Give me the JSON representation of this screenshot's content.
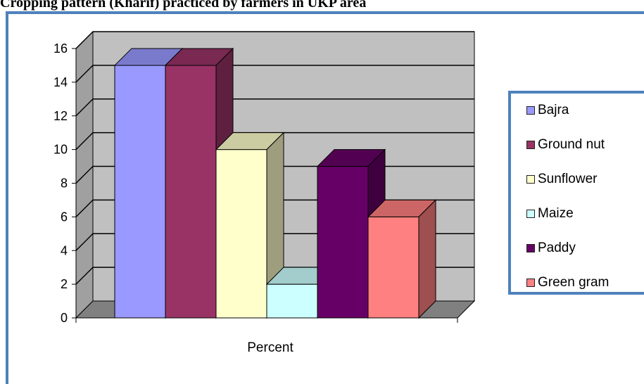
{
  "title": "Cropping pattern (Kharif) practiced by farmers in UKP area",
  "chart_data": {
    "type": "bar",
    "style": "3d-clustered-column",
    "categories": [
      "Percent"
    ],
    "series": [
      {
        "name": "Bajra",
        "values": [
          15
        ],
        "color": "#9999ff"
      },
      {
        "name": "Ground nut",
        "values": [
          15
        ],
        "color": "#993366"
      },
      {
        "name": "Sunflower",
        "values": [
          10
        ],
        "color": "#ffffcc"
      },
      {
        "name": "Maize",
        "values": [
          2
        ],
        "color": "#ccffff"
      },
      {
        "name": "Paddy",
        "values": [
          9
        ],
        "color": "#660066"
      },
      {
        "name": "Green gram",
        "values": [
          6
        ],
        "color": "#ff8080"
      }
    ],
    "ylim": [
      0,
      16
    ],
    "yticks": [
      "0",
      "2",
      "4",
      "6",
      "8",
      "10",
      "12",
      "14",
      "16"
    ],
    "grid": true,
    "wall_color": "#c0c0c0",
    "legend_position": "right"
  }
}
